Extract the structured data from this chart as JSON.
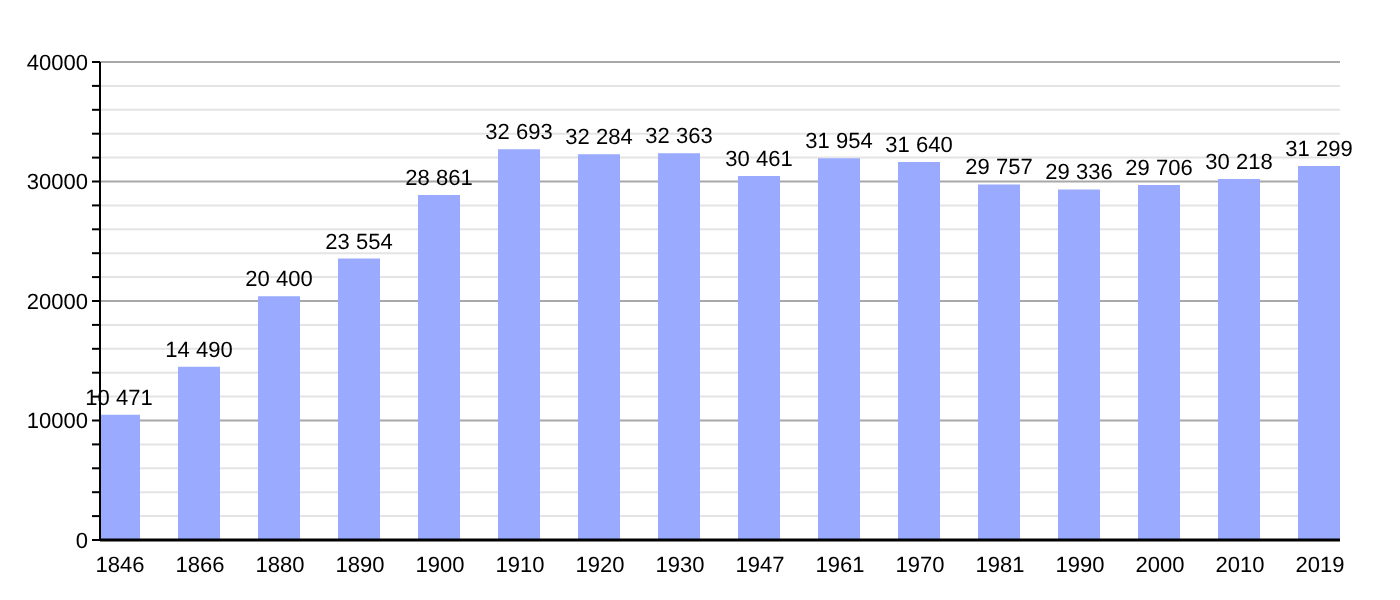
{
  "chart_data": {
    "type": "bar",
    "categories": [
      "1846",
      "1866",
      "1880",
      "1890",
      "1900",
      "1910",
      "1920",
      "1930",
      "1947",
      "1961",
      "1970",
      "1981",
      "1990",
      "2000",
      "2010",
      "2019"
    ],
    "values": [
      10471,
      14490,
      20400,
      23554,
      28861,
      32693,
      32284,
      32363,
      30461,
      31954,
      31640,
      29757,
      29336,
      29706,
      30218,
      31299
    ],
    "value_labels": [
      "10 471",
      "14 490",
      "20 400",
      "23 554",
      "28 861",
      "32 693",
      "32 284",
      "32 363",
      "30 461",
      "31 954",
      "31 640",
      "29 757",
      "29 336",
      "29 706",
      "30 218",
      "31 299"
    ],
    "color": "#99aaff",
    "ylim": [
      0,
      40000
    ],
    "yticks": [
      0,
      {
        "value": 2000,
        "label": null
      },
      {
        "value": 4000,
        "label": null
      },
      {
        "value": 6000,
        "label": null
      },
      {
        "value": 8000,
        "label": null
      },
      10000,
      {
        "value": 12000,
        "label": null
      },
      {
        "value": 14000,
        "label": null
      },
      {
        "value": 16000,
        "label": null
      },
      {
        "value": 18000,
        "label": null
      },
      20000,
      {
        "value": 22000,
        "label": null
      },
      {
        "value": 24000,
        "label": null
      },
      {
        "value": 26000,
        "label": null
      },
      {
        "value": 28000,
        "label": null
      },
      30000,
      {
        "value": 32000,
        "label": null
      },
      {
        "value": 34000,
        "label": null
      },
      {
        "value": 36000,
        "label": null
      },
      {
        "value": 38000,
        "label": null
      },
      40000
    ],
    "grid": "y"
  }
}
